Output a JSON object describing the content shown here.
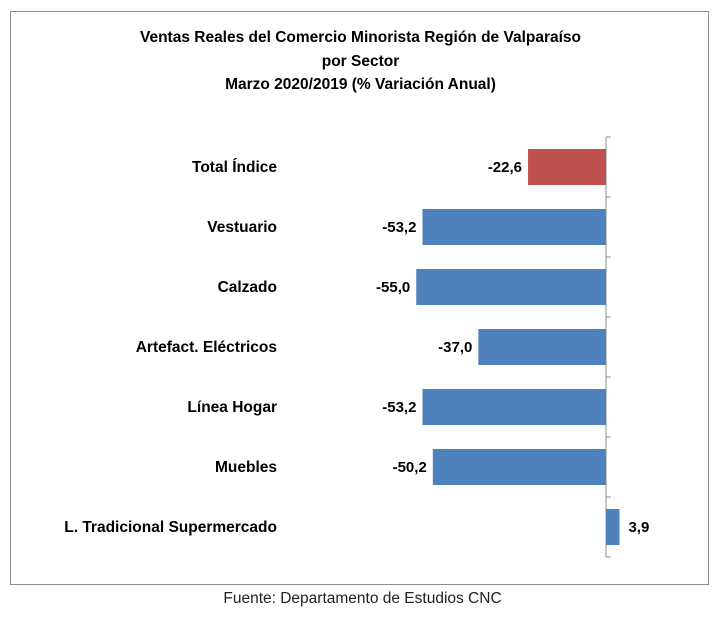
{
  "chart_data": {
    "type": "bar",
    "orientation": "horizontal",
    "title_lines": [
      "Ventas Reales del Comercio Minorista Región de Valparaíso",
      "por Sector",
      "Marzo 2020/2019 (% Variación Anual)"
    ],
    "categories": [
      "Total Índice",
      "Vestuario",
      "Calzado",
      "Artefact. Eléctricos",
      "Línea Hogar",
      "Muebles",
      "L. Tradicional Supermercado"
    ],
    "values": [
      -22.6,
      -53.2,
      -55.0,
      -37.0,
      -53.2,
      -50.2,
      3.9
    ],
    "value_labels": [
      "-22,6",
      "-53,2",
      "-55,0",
      "-37,0",
      "-53,2",
      "-50,2",
      "3,9"
    ],
    "bar_colors": [
      "#c0504d",
      "#4f81bd",
      "#4f81bd",
      "#4f81bd",
      "#4f81bd",
      "#4f81bd",
      "#4f81bd"
    ],
    "axis_color": "#8c8c8c",
    "xlim": [
      -55.0,
      3.9
    ],
    "grid": false,
    "legend": "none"
  },
  "source": "Fuente: Departamento de Estudios CNC"
}
